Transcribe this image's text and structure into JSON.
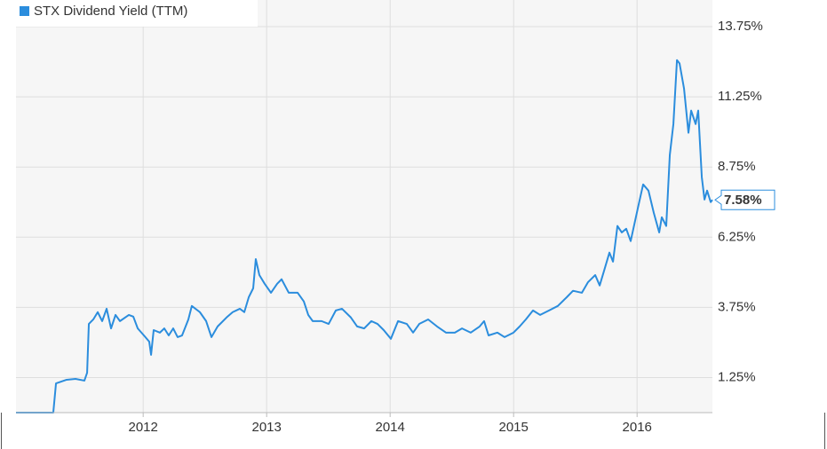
{
  "chart_data": {
    "type": "line",
    "xlim": [
      2010.97,
      2016.61
    ],
    "xticks": [
      2012,
      2013,
      2014,
      2015,
      2016
    ],
    "ylim": [
      0,
      14.7
    ],
    "yticks": [
      {
        "value": 1.25,
        "label": "1.25%"
      },
      {
        "value": 3.75,
        "label": "3.75%"
      },
      {
        "value": 6.25,
        "label": "6.25%"
      },
      {
        "value": 8.75,
        "label": "8.75%"
      },
      {
        "value": 11.25,
        "label": "11.25%"
      },
      {
        "value": 13.75,
        "label": "13.75%"
      }
    ],
    "grid": true,
    "legend": "top-left",
    "x": [
      2010.97,
      2011.272,
      2011.294,
      2011.38,
      2011.452,
      2011.524,
      2011.546,
      2011.56,
      2011.596,
      2011.632,
      2011.668,
      2011.704,
      2011.74,
      2011.776,
      2011.812,
      2011.884,
      2011.92,
      2011.956,
      2012.006,
      2012.049,
      2012.064,
      2012.085,
      2012.135,
      2012.171,
      2012.207,
      2012.243,
      2012.279,
      2012.315,
      2012.366,
      2012.394,
      2012.459,
      2012.51,
      2012.553,
      2012.603,
      2012.675,
      2012.725,
      2012.783,
      2012.819,
      2012.855,
      2012.891,
      2012.912,
      2012.941,
      2012.984,
      2013.035,
      2013.085,
      2013.121,
      2013.179,
      2013.251,
      2013.301,
      2013.337,
      2013.373,
      2013.445,
      2013.502,
      2013.56,
      2013.61,
      2013.682,
      2013.733,
      2013.79,
      2013.848,
      2013.898,
      2013.948,
      2014.006,
      2014.064,
      2014.135,
      2014.186,
      2014.236,
      2014.308,
      2014.38,
      2014.452,
      2014.524,
      2014.582,
      2014.653,
      2014.725,
      2014.761,
      2014.797,
      2014.869,
      2014.927,
      2014.999,
      2015.049,
      2015.099,
      2015.157,
      2015.215,
      2015.287,
      2015.358,
      2015.43,
      2015.481,
      2015.553,
      2015.603,
      2015.661,
      2015.697,
      2015.733,
      2015.776,
      2015.805,
      2015.841,
      2015.876,
      2015.912,
      2015.948,
      2016.006,
      2016.049,
      2016.092,
      2016.135,
      2016.179,
      2016.2,
      2016.236,
      2016.265,
      2016.294,
      2016.323,
      2016.344,
      2016.38,
      2016.416,
      2016.438,
      2016.474,
      2016.495,
      2016.524,
      2016.546,
      2016.567,
      2016.596,
      2016.61
    ],
    "series": [
      {
        "name": "STX Dividend Yield (TTM)",
        "color": "#2b8ddd",
        "values": [
          0,
          0,
          1.04,
          1.17,
          1.2,
          1.14,
          1.42,
          3.16,
          3.32,
          3.58,
          3.26,
          3.7,
          3.0,
          3.48,
          3.26,
          3.48,
          3.42,
          3.0,
          2.75,
          2.53,
          2.06,
          2.94,
          2.85,
          3.0,
          2.75,
          3.0,
          2.69,
          2.75,
          3.32,
          3.8,
          3.58,
          3.26,
          2.69,
          3.07,
          3.39,
          3.58,
          3.7,
          3.58,
          4.11,
          4.43,
          5.47,
          4.9,
          4.59,
          4.27,
          4.59,
          4.75,
          4.27,
          4.27,
          3.96,
          3.48,
          3.26,
          3.26,
          3.16,
          3.64,
          3.7,
          3.39,
          3.07,
          3.0,
          3.26,
          3.16,
          2.94,
          2.63,
          3.26,
          3.16,
          2.85,
          3.16,
          3.32,
          3.07,
          2.85,
          2.85,
          3.0,
          2.85,
          3.07,
          3.26,
          2.75,
          2.85,
          2.69,
          2.85,
          3.07,
          3.32,
          3.64,
          3.48,
          3.64,
          3.8,
          4.11,
          4.34,
          4.27,
          4.65,
          4.9,
          4.53,
          5.06,
          5.7,
          5.38,
          6.65,
          6.42,
          6.55,
          6.11,
          7.28,
          8.13,
          7.91,
          7.12,
          6.42,
          6.96,
          6.65,
          9.18,
          10.28,
          12.56,
          12.44,
          11.55,
          9.97,
          10.76,
          10.28,
          10.76,
          8.39,
          7.59,
          7.91,
          7.5,
          7.58
        ],
        "value_labels": [
          null,
          null,
          null,
          null,
          null,
          null,
          null,
          null,
          null,
          null,
          null,
          null,
          null,
          null,
          null,
          null,
          null,
          null,
          null,
          null,
          null,
          null,
          null,
          null,
          null,
          null,
          null,
          null,
          null,
          null,
          null,
          null,
          null,
          null,
          null,
          null,
          null,
          null,
          null,
          null,
          null,
          null,
          null,
          null,
          null,
          null,
          null,
          null,
          null,
          null,
          null,
          null,
          null,
          null,
          null,
          null,
          null,
          null,
          null,
          null,
          null,
          null,
          null,
          null,
          null,
          null,
          null,
          null,
          null,
          null,
          null,
          null,
          null,
          null,
          null,
          null,
          null,
          null,
          null,
          null,
          null,
          null,
          null,
          null,
          null,
          null,
          null,
          null,
          null,
          null,
          null,
          null,
          null,
          null,
          null,
          null,
          null,
          null,
          null,
          null,
          null,
          null,
          null,
          null,
          null,
          null,
          null,
          null,
          null,
          null,
          null,
          null,
          null,
          null,
          null,
          null,
          null,
          "7.58%"
        ]
      }
    ]
  }
}
